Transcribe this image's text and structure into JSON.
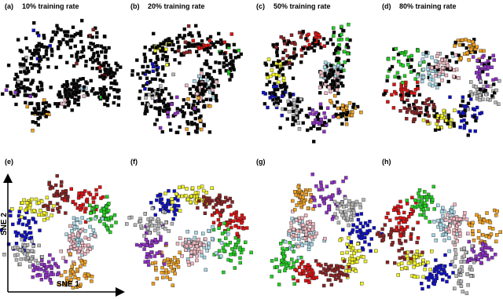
{
  "panels": [
    {
      "label": "(a)",
      "title": "10% training rate"
    },
    {
      "label": "(b)",
      "title": "20% training rate"
    },
    {
      "label": "(c)",
      "title": "50% training rate"
    },
    {
      "label": "(d)",
      "title": "80% training rate"
    },
    {
      "label": "(e)"
    },
    {
      "label": "(f)"
    },
    {
      "label": "(g)"
    },
    {
      "label": "(h)"
    }
  ],
  "axes": {
    "x_label": "SNE 1",
    "y_label": "SNE 2"
  }
}
